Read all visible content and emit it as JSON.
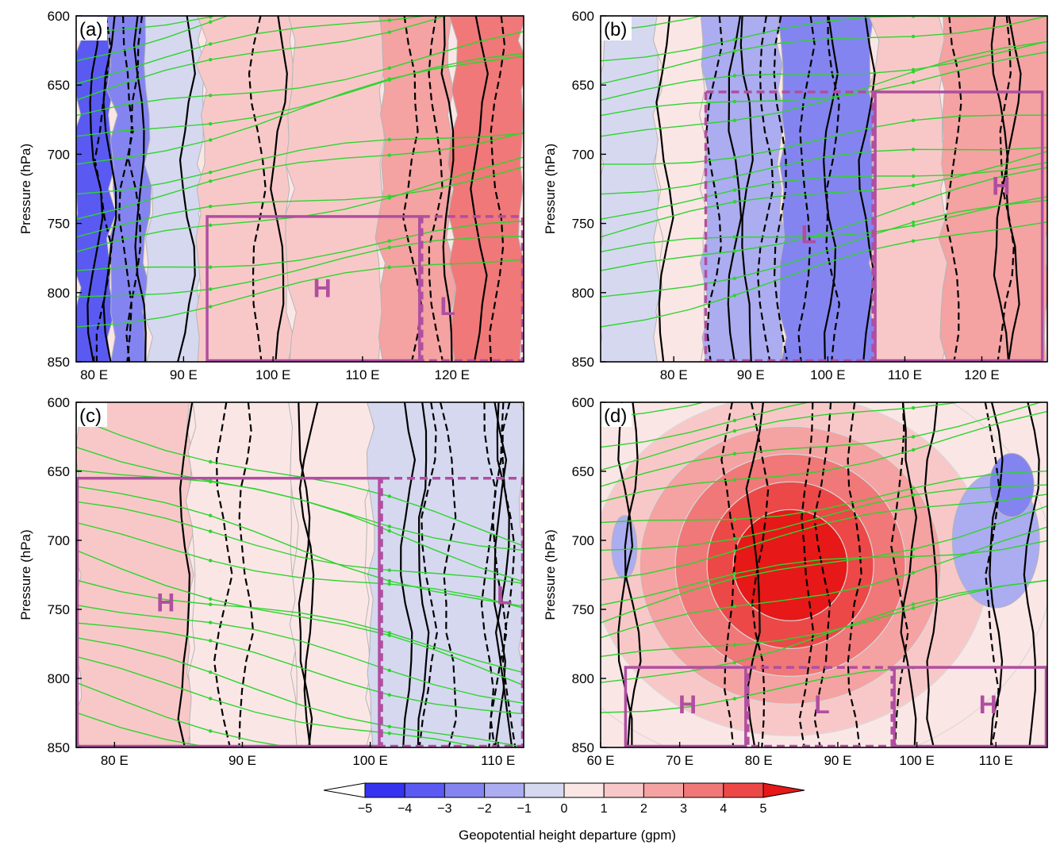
{
  "figure": {
    "colorbar_label": "Geopotential height departure (gpm)"
  },
  "colors": {
    "neg5": "#3434f0",
    "neg4": "#5a5af2",
    "neg3": "#8484f0",
    "neg2": "#acacf0",
    "neg1": "#d6d8f0",
    "pos0": "#fbe6e6",
    "pos1": "#f8c8c8",
    "pos2": "#f4a2a2",
    "pos3": "#f07878",
    "pos4": "#ec4848",
    "pos5": "#e61818",
    "streamline": "#2fd42f",
    "box": "#b04ea0",
    "contour": "#000000"
  },
  "chart_data": [
    {
      "type": "heatmap",
      "panel": "(a)",
      "ylabel": "Pressure (hPa)",
      "xlabel": "",
      "xlim": [
        78,
        128
      ],
      "ylim": [
        850,
        600
      ],
      "x_ticks": [
        80,
        90,
        100,
        110,
        120
      ],
      "x_tick_labels": [
        "80 E",
        "90 E",
        "100 E",
        "110 E",
        "120 E"
      ],
      "y_ticks": [
        600,
        650,
        700,
        750,
        800,
        850
      ],
      "y_tick_labels": [
        "600",
        "650",
        "700",
        "750",
        "800",
        "850"
      ],
      "regions": [
        {
          "label": "H",
          "x": [
            92.5,
            116.5
          ],
          "y": [
            745,
            850
          ],
          "style": "solid",
          "label_pos": [
            105.5,
            797
          ]
        },
        {
          "label": "L",
          "x": [
            116.5,
            128
          ],
          "y": [
            745,
            850
          ],
          "style": "dashed",
          "label_pos": [
            119.5,
            810
          ]
        }
      ],
      "field_bands": [
        {
          "x": [
            78,
            82
          ],
          "level": -4
        },
        {
          "x": [
            82,
            86
          ],
          "level": -3
        },
        {
          "x": [
            86,
            92
          ],
          "level": -1
        },
        {
          "x": [
            92,
            102
          ],
          "level": 1
        },
        {
          "x": [
            102,
            112
          ],
          "level": 1
        },
        {
          "x": [
            112,
            120
          ],
          "level": 2
        },
        {
          "x": [
            120,
            128
          ],
          "level": 3
        }
      ]
    },
    {
      "type": "heatmap",
      "panel": "(b)",
      "ylabel": "Pressure (hPa)",
      "xlabel": "",
      "xlim": [
        70.5,
        128.5
      ],
      "ylim": [
        850,
        600
      ],
      "x_ticks": [
        80,
        90,
        100,
        110,
        120
      ],
      "x_tick_labels": [
        "80 E",
        "90 E",
        "100 E",
        "110 E",
        "120 E"
      ],
      "y_ticks": [
        600,
        650,
        700,
        750,
        800,
        850
      ],
      "y_tick_labels": [
        "600",
        "650",
        "700",
        "750",
        "800",
        "850"
      ],
      "regions": [
        {
          "label": "L",
          "x": [
            84,
            106
          ],
          "y": [
            655,
            850
          ],
          "style": "dashed",
          "label_pos": [
            97.5,
            758
          ]
        },
        {
          "label": "H",
          "x": [
            106,
            128
          ],
          "y": [
            655,
            850
          ],
          "style": "solid",
          "label_pos": [
            122.5,
            723
          ]
        }
      ],
      "field_bands": [
        {
          "x": [
            70.5,
            78
          ],
          "level": -1
        },
        {
          "x": [
            78,
            84
          ],
          "level": 0
        },
        {
          "x": [
            84,
            94
          ],
          "level": -2
        },
        {
          "x": [
            94,
            106
          ],
          "level": -3
        },
        {
          "x": [
            106,
            115
          ],
          "level": 1
        },
        {
          "x": [
            115,
            128.5
          ],
          "level": 2
        }
      ]
    },
    {
      "type": "heatmap",
      "panel": "(c)",
      "ylabel": "Pressure (hPa)",
      "xlabel": "",
      "xlim": [
        77,
        112
      ],
      "ylim": [
        850,
        600
      ],
      "x_ticks": [
        80,
        90,
        100,
        110
      ],
      "x_tick_labels": [
        "80 E",
        "90 E",
        "100 E",
        "110 E"
      ],
      "y_ticks": [
        600,
        650,
        700,
        750,
        800,
        850
      ],
      "y_tick_labels": [
        "600",
        "650",
        "700",
        "750",
        "800",
        "850"
      ],
      "regions": [
        {
          "label": "H",
          "x": [
            77,
            100.8
          ],
          "y": [
            655,
            850
          ],
          "style": "solid",
          "label_pos": [
            84,
            745
          ]
        },
        {
          "label": "L",
          "x": [
            100.8,
            112
          ],
          "y": [
            655,
            850
          ],
          "style": "dashed",
          "label_pos": [
            110.5,
            740
          ]
        }
      ],
      "field_bands": [
        {
          "x": [
            77,
            86
          ],
          "level": 1
        },
        {
          "x": [
            86,
            94
          ],
          "level": 0
        },
        {
          "x": [
            94,
            100
          ],
          "level": 0
        },
        {
          "x": [
            100,
            112
          ],
          "level": -1
        }
      ]
    },
    {
      "type": "heatmap",
      "panel": "(d)",
      "ylabel": "Pressure (hPa)",
      "xlabel": "",
      "xlim": [
        60,
        116.5
      ],
      "ylim": [
        850,
        600
      ],
      "x_ticks": [
        60,
        70,
        80,
        90,
        100,
        110
      ],
      "x_tick_labels": [
        "60 E",
        "70 E",
        "80 E",
        "90 E",
        "100 E",
        "110 E"
      ],
      "y_ticks": [
        600,
        650,
        700,
        750,
        800,
        850
      ],
      "y_tick_labels": [
        "600",
        "650",
        "700",
        "750",
        "800",
        "850"
      ],
      "regions": [
        {
          "label": "H",
          "x": [
            63,
            78.5
          ],
          "y": [
            792,
            850
          ],
          "style": "solid",
          "label_pos": [
            71,
            819
          ]
        },
        {
          "label": "L",
          "x": [
            78.5,
            97
          ],
          "y": [
            792,
            850
          ],
          "style": "dashed",
          "label_pos": [
            88,
            819
          ]
        },
        {
          "label": "H",
          "x": [
            97,
            116.5
          ],
          "y": [
            792,
            850
          ],
          "style": "solid",
          "label_pos": [
            109,
            819
          ]
        }
      ],
      "field_center": {
        "x": 84,
        "p": 718,
        "peak": 5
      }
    }
  ],
  "colorbar": {
    "ticks": [
      "−5",
      "−4",
      "−3",
      "−2",
      "−1",
      "0",
      "1",
      "2",
      "3",
      "4",
      "5"
    ],
    "label": "Geopotential height departure (gpm)"
  }
}
